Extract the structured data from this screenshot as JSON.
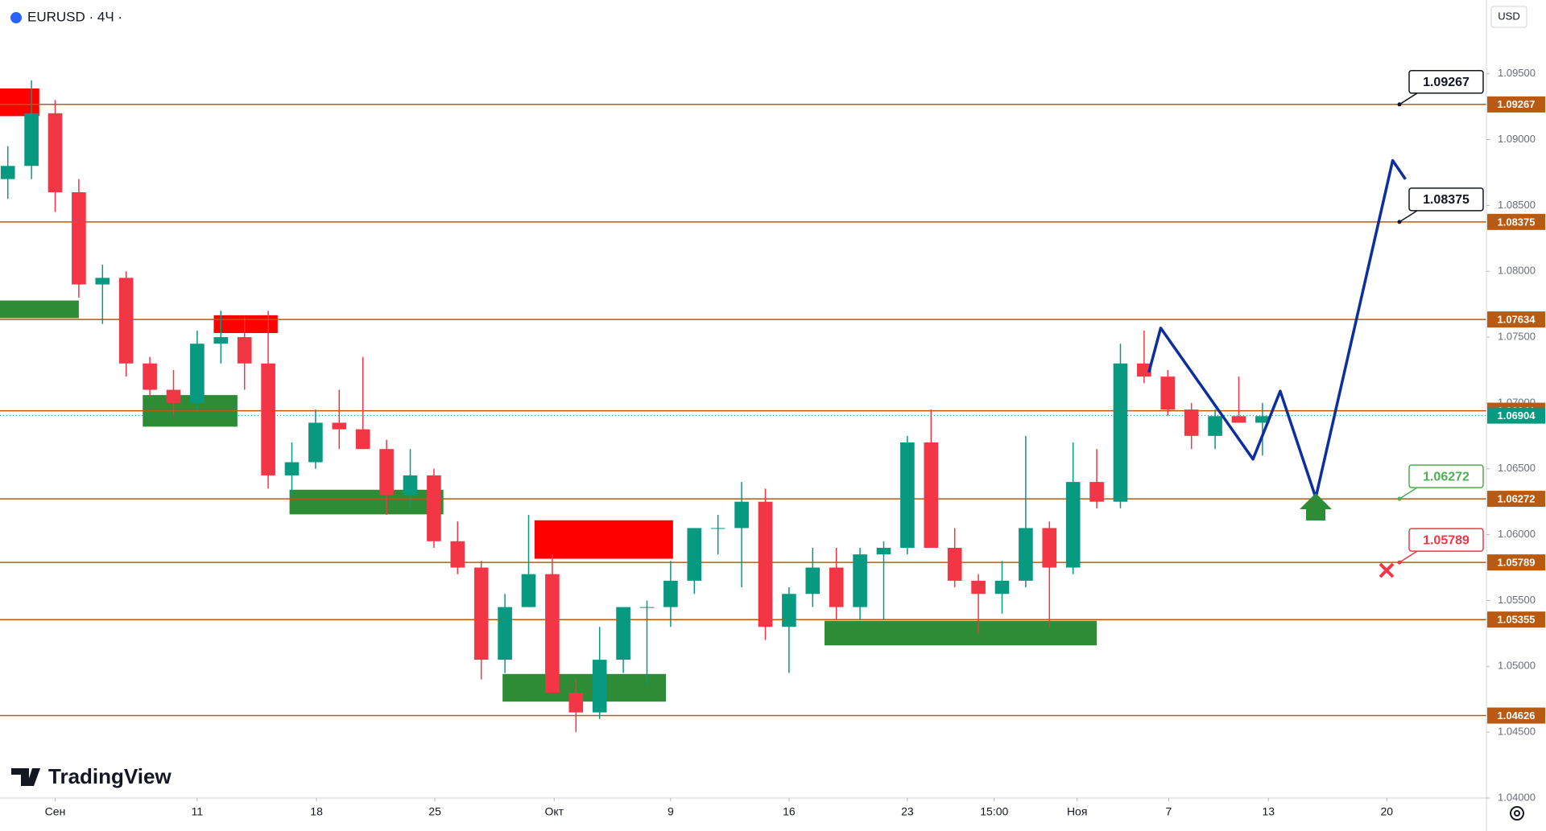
{
  "chart_data": {
    "type": "candlestick",
    "title": "EURUSD · 4Ч ·",
    "currency": "USD",
    "brand": "TradingView",
    "up_color": "#089981",
    "down_color": "#f23645",
    "grid": false,
    "xlim": [
      -2.33,
      60.46
    ],
    "ylim": [
      1.04,
      1.1006
    ],
    "yticks": [
      {
        "value": 1.04,
        "label": "1.04000"
      },
      {
        "value": 1.045,
        "label": "1.04500"
      },
      {
        "value": 1.05,
        "label": "1.05000"
      },
      {
        "value": 1.055,
        "label": "1.05500"
      },
      {
        "value": 1.06,
        "label": "1.06000"
      },
      {
        "value": 1.065,
        "label": "1.06500"
      },
      {
        "value": 1.07,
        "label": "1.07000"
      },
      {
        "value": 1.075,
        "label": "1.07500"
      },
      {
        "value": 1.08,
        "label": "1.08000"
      },
      {
        "value": 1.085,
        "label": "1.08500"
      },
      {
        "value": 1.09,
        "label": "1.09000"
      },
      {
        "value": 1.095,
        "label": "1.09500"
      }
    ],
    "xticks": [
      {
        "value": 0,
        "label": "Сен"
      },
      {
        "value": 6,
        "label": "11"
      },
      {
        "value": 11.04,
        "label": "18"
      },
      {
        "value": 16.04,
        "label": "25"
      },
      {
        "value": 21.08,
        "label": "Окт"
      },
      {
        "value": 26,
        "label": "9"
      },
      {
        "value": 31,
        "label": "16"
      },
      {
        "value": 36,
        "label": "23"
      },
      {
        "value": 39.67,
        "label": "15:00"
      },
      {
        "value": 43.17,
        "label": "Ноя"
      },
      {
        "value": 47.04,
        "label": "7"
      },
      {
        "value": 51.25,
        "label": "13"
      },
      {
        "value": 56.25,
        "label": "20"
      }
    ],
    "x": [
      -2,
      -1,
      0,
      1,
      2,
      3,
      4,
      5,
      6,
      7,
      8,
      9,
      10,
      11,
      12,
      13,
      14,
      15,
      16,
      17,
      18,
      19,
      20,
      21,
      22,
      23,
      24,
      25,
      26,
      27,
      28,
      29,
      30,
      31,
      32,
      33,
      34,
      35,
      36,
      37,
      38,
      39,
      40,
      41,
      42,
      43,
      44,
      45,
      46,
      47,
      48,
      49,
      50,
      51
    ],
    "open": [
      1.087,
      1.088,
      1.092,
      1.086,
      1.079,
      1.0795,
      1.073,
      1.071,
      1.07,
      1.0745,
      1.075,
      1.073,
      1.0645,
      1.0655,
      1.0685,
      1.068,
      1.0665,
      1.063,
      1.0645,
      1.0595,
      1.0575,
      1.0505,
      1.0545,
      1.057,
      1.048,
      1.0465,
      1.0505,
      1.0545,
      1.0545,
      1.0565,
      1.0605,
      1.0605,
      1.0625,
      1.053,
      1.0555,
      1.0575,
      1.0545,
      1.0585,
      1.059,
      1.067,
      1.059,
      1.0565,
      1.0555,
      1.0565,
      1.0605,
      1.0575,
      1.064,
      1.0625,
      1.073,
      1.072,
      1.0695,
      1.0675,
      1.069,
      1.0685
    ],
    "high": [
      1.0895,
      1.0945,
      1.093,
      1.087,
      1.0805,
      1.08,
      1.0735,
      1.0725,
      1.0755,
      1.077,
      1.0765,
      1.077,
      1.067,
      1.0695,
      1.071,
      1.0735,
      1.0672,
      1.0665,
      1.065,
      1.061,
      1.058,
      1.0555,
      1.0615,
      1.0585,
      1.049,
      1.053,
      1.054,
      1.055,
      1.058,
      1.0605,
      1.0615,
      1.064,
      1.0635,
      1.056,
      1.059,
      1.059,
      1.059,
      1.0595,
      1.0675,
      1.0695,
      1.0605,
      1.057,
      1.058,
      1.0675,
      1.061,
      1.067,
      1.0665,
      1.0745,
      1.0755,
      1.0725,
      1.07,
      1.0695,
      1.072,
      1.07
    ],
    "low": [
      1.0855,
      1.087,
      1.0845,
      1.078,
      1.076,
      1.072,
      1.0705,
      1.069,
      1.0695,
      1.073,
      1.071,
      1.0635,
      1.063,
      1.065,
      1.0665,
      1.0665,
      1.0615,
      1.062,
      1.059,
      1.057,
      1.049,
      1.0495,
      1.0545,
      1.048,
      1.045,
      1.046,
      1.0495,
      1.0485,
      1.053,
      1.0555,
      1.0585,
      1.056,
      1.052,
      1.0495,
      1.0545,
      1.0535,
      1.0535,
      1.0535,
      1.0585,
      1.059,
      1.056,
      1.0525,
      1.054,
      1.056,
      1.053,
      1.057,
      1.062,
      1.062,
      1.0715,
      1.069,
      1.0665,
      1.0665,
      1.0685,
      1.066
    ],
    "close": [
      1.088,
      1.092,
      1.086,
      1.079,
      1.0795,
      1.073,
      1.071,
      1.07,
      1.0745,
      1.075,
      1.073,
      1.0645,
      1.0655,
      1.0685,
      1.068,
      1.0665,
      1.063,
      1.0645,
      1.0595,
      1.0575,
      1.0505,
      1.0545,
      1.057,
      1.048,
      1.0465,
      1.0505,
      1.0545,
      1.0545,
      1.0565,
      1.0605,
      1.0605,
      1.0625,
      1.053,
      1.0555,
      1.0575,
      1.0545,
      1.0585,
      1.059,
      1.067,
      1.059,
      1.0565,
      1.0555,
      1.0565,
      1.0605,
      1.0575,
      1.064,
      1.0625,
      1.073,
      1.072,
      1.0695,
      1.0675,
      1.069,
      1.0685,
      1.069
    ],
    "levels": [
      {
        "value": 1.09267,
        "color": "#b85a12"
      },
      {
        "value": 1.08375,
        "color": "#b85a12"
      },
      {
        "value": 1.07634,
        "color": "#b85a12"
      },
      {
        "value": 1.06941,
        "color": "#b85a12"
      },
      {
        "value": 1.06272,
        "color": "#b85a12"
      },
      {
        "value": 1.05789,
        "color": "#b85a12"
      },
      {
        "value": 1.05355,
        "color": "#b85a12"
      },
      {
        "value": 1.04626,
        "color": "#b85a12"
      }
    ],
    "current_price": {
      "value": 1.06904,
      "color": "#089981"
    },
    "callouts": [
      {
        "value": 1.09267,
        "color": "#131722"
      },
      {
        "value": 1.08375,
        "color": "#131722"
      },
      {
        "value": 1.06272,
        "color": "#4caf50"
      },
      {
        "value": 1.05789,
        "color": "#f23645"
      }
    ],
    "zones": [
      {
        "color": "#ff0000",
        "x": [
          -2.33,
          -0.67
        ],
        "y": [
          1.09178,
          1.09388
        ]
      },
      {
        "color": "#2e8b36",
        "x": [
          -2.33,
          1.0
        ],
        "y": [
          1.07644,
          1.07778
        ]
      },
      {
        "color": "#ff0000",
        "x": [
          6.7,
          9.4
        ],
        "y": [
          1.07531,
          1.07666
        ]
      },
      {
        "color": "#2e8b36",
        "x": [
          3.7,
          7.7
        ],
        "y": [
          1.0682,
          1.0706
        ]
      },
      {
        "color": "#2e8b36",
        "x": [
          9.9,
          16.4
        ],
        "y": [
          1.06154,
          1.06341
        ]
      },
      {
        "color": "#ff0000",
        "x": [
          20.25,
          26.1
        ],
        "y": [
          1.05817,
          1.06109
        ]
      },
      {
        "color": "#2e8b36",
        "x": [
          18.9,
          25.8
        ],
        "y": [
          1.04732,
          1.04942
        ]
      },
      {
        "color": "#2e8b36",
        "x": [
          32.5,
          44.0
        ],
        "y": [
          1.05159,
          1.05346
        ]
      }
    ],
    "projection": {
      "color": "#0d2f9e",
      "x": [
        46.2,
        46.7,
        50.6,
        51.75,
        53.25,
        56.5,
        57.04
      ],
      "y": [
        1.07232,
        1.07569,
        1.06573,
        1.0709,
        1.06281,
        1.08841,
        1.08699
      ]
    }
  }
}
